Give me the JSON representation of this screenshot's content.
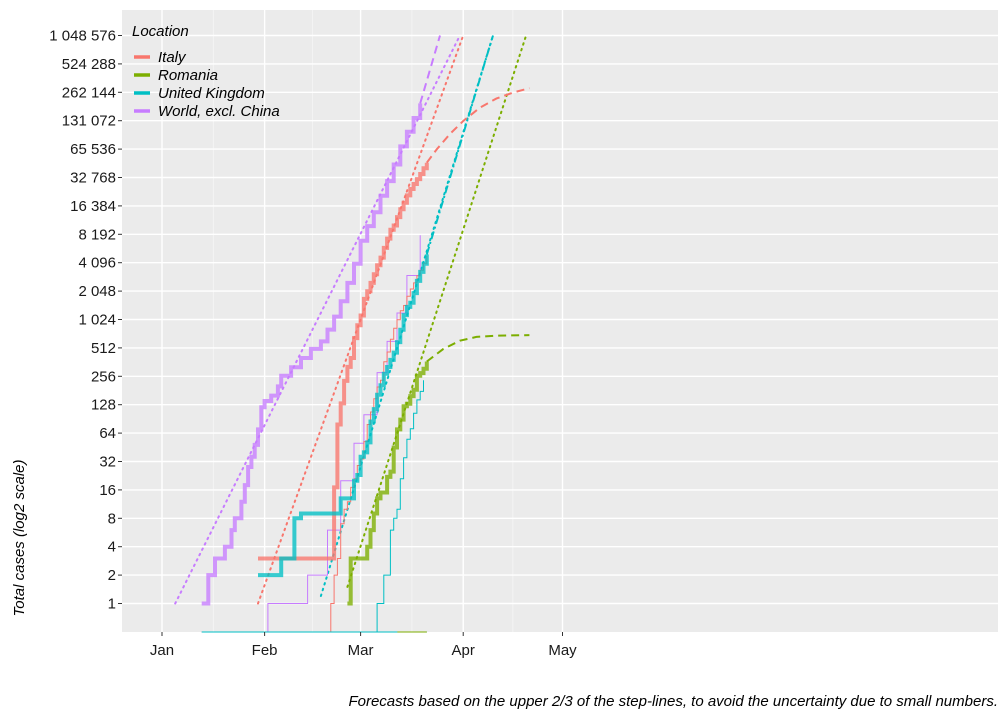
{
  "chart_data": {
    "type": "line",
    "y_scale": "log2",
    "ylabel": "Total cases (log2 scale)",
    "caption": "Forecasts based on the upper 2/3 of the step-lines, to avoid the uncertainty due to small numbers.",
    "x_ticks": [
      "Jan",
      "Feb",
      "Mar",
      "Apr",
      "May"
    ],
    "y_ticks": [
      {
        "value": 1,
        "label": "1"
      },
      {
        "value": 2,
        "label": "2"
      },
      {
        "value": 4,
        "label": "4"
      },
      {
        "value": 8,
        "label": "8"
      },
      {
        "value": 16,
        "label": "16"
      },
      {
        "value": 32,
        "label": "32"
      },
      {
        "value": 64,
        "label": "64"
      },
      {
        "value": 128,
        "label": "128"
      },
      {
        "value": 256,
        "label": "256"
      },
      {
        "value": 512,
        "label": "512"
      },
      {
        "value": 1024,
        "label": "1 024"
      },
      {
        "value": 2048,
        "label": "2 048"
      },
      {
        "value": 4096,
        "label": "4 096"
      },
      {
        "value": 8192,
        "label": "8 192"
      },
      {
        "value": 16384,
        "label": "16 384"
      },
      {
        "value": 32768,
        "label": "32 768"
      },
      {
        "value": 65536,
        "label": "65 536"
      },
      {
        "value": 131072,
        "label": "131 072"
      },
      {
        "value": 262144,
        "label": "262 144"
      },
      {
        "value": 524288,
        "label": "524 288"
      },
      {
        "value": 1048576,
        "label": "1 048 576"
      }
    ],
    "legend": {
      "title": "Location",
      "position": "top-left",
      "entries": [
        {
          "name": "Italy",
          "color": "#F8766D"
        },
        {
          "name": "Romania",
          "color": "#7CAE00"
        },
        {
          "name": "United Kingdom",
          "color": "#00BFC4"
        },
        {
          "name": "World, excl. China",
          "color": "#C77CFF"
        }
      ]
    },
    "series": [
      {
        "name": "World, excl. China",
        "color": "#C77CFF",
        "cases": [
          [
            "2020-01-13",
            1
          ],
          [
            "2020-01-15",
            2
          ],
          [
            "2020-01-17",
            3
          ],
          [
            "2020-01-20",
            4
          ],
          [
            "2020-01-22",
            6
          ],
          [
            "2020-01-23",
            8
          ],
          [
            "2020-01-25",
            12
          ],
          [
            "2020-01-26",
            18
          ],
          [
            "2020-01-27",
            28
          ],
          [
            "2020-01-28",
            36
          ],
          [
            "2020-01-29",
            48
          ],
          [
            "2020-01-30",
            70
          ],
          [
            "2020-01-31",
            120
          ],
          [
            "2020-02-01",
            140
          ],
          [
            "2020-02-03",
            160
          ],
          [
            "2020-02-05",
            200
          ],
          [
            "2020-02-06",
            260
          ],
          [
            "2020-02-09",
            320
          ],
          [
            "2020-02-12",
            400
          ],
          [
            "2020-02-15",
            500
          ],
          [
            "2020-02-18",
            600
          ],
          [
            "2020-02-20",
            800
          ],
          [
            "2020-02-22",
            1100
          ],
          [
            "2020-02-24",
            1600
          ],
          [
            "2020-02-26",
            2500
          ],
          [
            "2020-02-28",
            4000
          ],
          [
            "2020-03-01",
            7000
          ],
          [
            "2020-03-03",
            10000
          ],
          [
            "2020-03-05",
            14000
          ],
          [
            "2020-03-07",
            21000
          ],
          [
            "2020-03-09",
            30000
          ],
          [
            "2020-03-11",
            45000
          ],
          [
            "2020-03-13",
            70000
          ],
          [
            "2020-03-15",
            100000
          ],
          [
            "2020-03-17",
            140000
          ],
          [
            "2020-03-19",
            200000
          ]
        ],
        "deaths": [
          [
            "2020-02-02",
            1
          ],
          [
            "2020-02-14",
            2
          ],
          [
            "2020-02-20",
            6
          ],
          [
            "2020-02-24",
            20
          ],
          [
            "2020-02-28",
            50
          ],
          [
            "2020-03-02",
            100
          ],
          [
            "2020-03-06",
            280
          ],
          [
            "2020-03-09",
            600
          ],
          [
            "2020-03-12",
            1200
          ],
          [
            "2020-03-15",
            3000
          ],
          [
            "2020-03-19",
            8000
          ]
        ],
        "fit": [
          [
            "2020-01-05",
            1
          ],
          [
            "2020-03-31",
            1048576
          ]
        ],
        "forecast": [
          [
            "2020-03-19",
            200000
          ],
          [
            "2020-03-25",
            1048576
          ]
        ]
      },
      {
        "name": "Italy",
        "color": "#F8766D",
        "cases": [
          [
            "2020-01-30",
            3
          ],
          [
            "2020-02-21",
            3
          ],
          [
            "2020-02-22",
            17
          ],
          [
            "2020-02-23",
            79
          ],
          [
            "2020-02-24",
            132
          ],
          [
            "2020-02-25",
            229
          ],
          [
            "2020-02-26",
            322
          ],
          [
            "2020-02-27",
            400
          ],
          [
            "2020-02-28",
            650
          ],
          [
            "2020-02-29",
            888
          ],
          [
            "2020-03-01",
            1128
          ],
          [
            "2020-03-02",
            1694
          ],
          [
            "2020-03-03",
            2036
          ],
          [
            "2020-03-04",
            2502
          ],
          [
            "2020-03-05",
            3089
          ],
          [
            "2020-03-06",
            3858
          ],
          [
            "2020-03-07",
            4636
          ],
          [
            "2020-03-08",
            5883
          ],
          [
            "2020-03-09",
            7375
          ],
          [
            "2020-03-10",
            9172
          ],
          [
            "2020-03-11",
            10149
          ],
          [
            "2020-03-12",
            12462
          ],
          [
            "2020-03-13",
            15113
          ],
          [
            "2020-03-14",
            17660
          ],
          [
            "2020-03-15",
            21157
          ],
          [
            "2020-03-16",
            24747
          ],
          [
            "2020-03-17",
            27980
          ],
          [
            "2020-03-18",
            31506
          ],
          [
            "2020-03-19",
            35713
          ],
          [
            "2020-03-20",
            41035
          ],
          [
            "2020-03-21",
            47021
          ]
        ],
        "deaths": [
          [
            "2020-02-21",
            1
          ],
          [
            "2020-02-22",
            2
          ],
          [
            "2020-02-23",
            3
          ],
          [
            "2020-02-24",
            7
          ],
          [
            "2020-02-25",
            10
          ],
          [
            "2020-02-26",
            12
          ],
          [
            "2020-02-27",
            17
          ],
          [
            "2020-02-28",
            21
          ],
          [
            "2020-02-29",
            29
          ],
          [
            "2020-03-01",
            34
          ],
          [
            "2020-03-02",
            52
          ],
          [
            "2020-03-03",
            79
          ],
          [
            "2020-03-04",
            107
          ],
          [
            "2020-03-05",
            148
          ],
          [
            "2020-03-06",
            197
          ],
          [
            "2020-03-07",
            233
          ],
          [
            "2020-03-08",
            366
          ],
          [
            "2020-03-09",
            463
          ],
          [
            "2020-03-10",
            631
          ],
          [
            "2020-03-11",
            827
          ],
          [
            "2020-03-12",
            1016
          ],
          [
            "2020-03-13",
            1266
          ],
          [
            "2020-03-14",
            1441
          ],
          [
            "2020-03-15",
            1809
          ],
          [
            "2020-03-16",
            2158
          ],
          [
            "2020-03-17",
            2503
          ],
          [
            "2020-03-18",
            2978
          ],
          [
            "2020-03-19",
            3405
          ],
          [
            "2020-03-20",
            4032
          ],
          [
            "2020-03-21",
            4825
          ]
        ],
        "fit": [
          [
            "2020-01-30",
            1
          ],
          [
            "2020-04-01",
            1048576
          ]
        ],
        "forecast": [
          [
            "2020-03-21",
            47021
          ],
          [
            "2020-03-24",
            65000
          ],
          [
            "2020-03-28",
            95000
          ],
          [
            "2020-04-01",
            130000
          ],
          [
            "2020-04-06",
            180000
          ],
          [
            "2020-04-11",
            225000
          ],
          [
            "2020-04-16",
            260000
          ],
          [
            "2020-04-21",
            290000
          ]
        ]
      },
      {
        "name": "United Kingdom",
        "color": "#00BFC4",
        "cases": [
          [
            "2020-01-30",
            2
          ],
          [
            "2020-02-06",
            3
          ],
          [
            "2020-02-10",
            8
          ],
          [
            "2020-02-12",
            9
          ],
          [
            "2020-02-19",
            9
          ],
          [
            "2020-02-24",
            13
          ],
          [
            "2020-02-28",
            20
          ],
          [
            "2020-02-29",
            23
          ],
          [
            "2020-03-01",
            36
          ],
          [
            "2020-03-02",
            40
          ],
          [
            "2020-03-03",
            51
          ],
          [
            "2020-03-04",
            85
          ],
          [
            "2020-03-05",
            115
          ],
          [
            "2020-03-06",
            163
          ],
          [
            "2020-03-07",
            206
          ],
          [
            "2020-03-08",
            273
          ],
          [
            "2020-03-09",
            321
          ],
          [
            "2020-03-10",
            382
          ],
          [
            "2020-03-11",
            456
          ],
          [
            "2020-03-12",
            590
          ],
          [
            "2020-03-13",
            798
          ],
          [
            "2020-03-14",
            1140
          ],
          [
            "2020-03-15",
            1391
          ],
          [
            "2020-03-16",
            1543
          ],
          [
            "2020-03-17",
            1950
          ],
          [
            "2020-03-18",
            2626
          ],
          [
            "2020-03-19",
            3269
          ],
          [
            "2020-03-20",
            3983
          ],
          [
            "2020-03-21",
            5018
          ]
        ],
        "deaths": [
          [
            "2020-03-06",
            1
          ],
          [
            "2020-03-08",
            2
          ],
          [
            "2020-03-10",
            6
          ],
          [
            "2020-03-11",
            8
          ],
          [
            "2020-03-12",
            10
          ],
          [
            "2020-03-13",
            21
          ],
          [
            "2020-03-14",
            35
          ],
          [
            "2020-03-15",
            55
          ],
          [
            "2020-03-16",
            71
          ],
          [
            "2020-03-17",
            104
          ],
          [
            "2020-03-18",
            144
          ],
          [
            "2020-03-19",
            177
          ],
          [
            "2020-03-20",
            233
          ]
        ],
        "fit": [
          [
            "2020-02-18",
            1.2
          ],
          [
            "2020-04-10",
            1048576
          ]
        ],
        "forecast": [
          [
            "2020-03-21",
            5018
          ],
          [
            "2020-04-10",
            1048576
          ]
        ]
      },
      {
        "name": "Romania",
        "color": "#7CAE00",
        "cases": [
          [
            "2020-02-26",
            1
          ],
          [
            "2020-02-27",
            3
          ],
          [
            "2020-03-02",
            3
          ],
          [
            "2020-03-03",
            4
          ],
          [
            "2020-03-04",
            6
          ],
          [
            "2020-03-05",
            9
          ],
          [
            "2020-03-06",
            13
          ],
          [
            "2020-03-07",
            15
          ],
          [
            "2020-03-08",
            15
          ],
          [
            "2020-03-09",
            22
          ],
          [
            "2020-03-10",
            25
          ],
          [
            "2020-03-11",
            45
          ],
          [
            "2020-03-12",
            70
          ],
          [
            "2020-03-13",
            89
          ],
          [
            "2020-03-14",
            123
          ],
          [
            "2020-03-15",
            131
          ],
          [
            "2020-03-16",
            158
          ],
          [
            "2020-03-17",
            184
          ],
          [
            "2020-03-18",
            260
          ],
          [
            "2020-03-19",
            277
          ],
          [
            "2020-03-20",
            308
          ],
          [
            "2020-03-21",
            367
          ]
        ],
        "deaths": [],
        "fit": [
          [
            "2020-02-26",
            1.5
          ],
          [
            "2020-04-20",
            1048576
          ]
        ],
        "forecast": [
          [
            "2020-03-21",
            367
          ],
          [
            "2020-03-26",
            500
          ],
          [
            "2020-03-31",
            610
          ],
          [
            "2020-04-05",
            670
          ],
          [
            "2020-04-11",
            690
          ],
          [
            "2020-04-21",
            700
          ]
        ]
      }
    ]
  }
}
